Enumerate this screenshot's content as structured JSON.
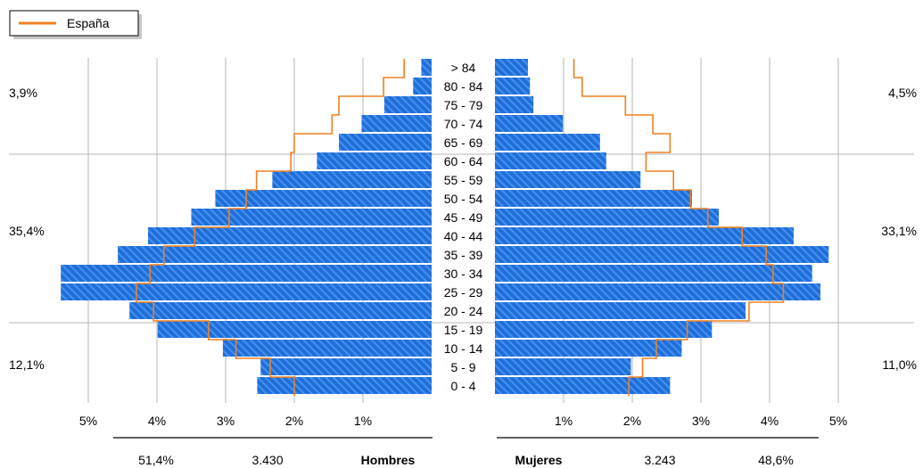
{
  "chart_data": {
    "type": "bar",
    "subtype": "population-pyramid",
    "legend": {
      "entries": [
        {
          "label": "España",
          "color": "#F08020"
        }
      ],
      "placement": "top-left"
    },
    "age_groups": [
      "> 84",
      "80 - 84",
      "75 - 79",
      "70 - 74",
      "65 - 69",
      "60 - 64",
      "55 - 59",
      "50 - 54",
      "45 - 49",
      "40 - 44",
      "35 - 39",
      "30 - 34",
      "25 - 29",
      "20 - 24",
      "15 - 19",
      "10 - 14",
      "5 - 9",
      "0 - 4"
    ],
    "x_ticks_left": [
      "5%",
      "4%",
      "3%",
      "2%",
      "1%"
    ],
    "x_ticks_right": [
      "1%",
      "2%",
      "3%",
      "4%",
      "5%"
    ],
    "xlim": [
      0,
      5
    ],
    "series": [
      {
        "name": "Hombres",
        "color": "#1E6FD9",
        "values": [
          0.15,
          0.27,
          0.69,
          1.02,
          1.35,
          1.67,
          2.32,
          3.15,
          3.5,
          4.13,
          4.57,
          5.4,
          5.4,
          4.4,
          3.99,
          3.04,
          2.49,
          2.54
        ]
      },
      {
        "name": "Mujeres",
        "color": "#1E6FD9",
        "values": [
          0.48,
          0.51,
          0.56,
          0.99,
          1.53,
          1.62,
          2.12,
          2.87,
          3.26,
          4.35,
          4.86,
          4.62,
          4.74,
          3.65,
          3.16,
          2.72,
          1.98,
          2.55
        ]
      },
      {
        "name": "España",
        "side": "Hombres",
        "color": "#F08020",
        "values": [
          0.4,
          0.7,
          1.35,
          1.45,
          2.0,
          2.05,
          2.55,
          2.7,
          2.95,
          3.45,
          3.9,
          4.1,
          4.3,
          4.05,
          3.25,
          2.85,
          2.35,
          2.0
        ]
      },
      {
        "name": "España",
        "side": "Mujeres",
        "color": "#F08020",
        "values": [
          1.15,
          1.27,
          1.9,
          2.3,
          2.55,
          2.2,
          2.6,
          2.85,
          3.1,
          3.6,
          3.95,
          4.05,
          4.2,
          3.7,
          2.8,
          2.35,
          2.15,
          1.95
        ]
      }
    ],
    "side_percentages": {
      "left": [
        "3,9%",
        "35,4%",
        "12,1%"
      ],
      "right": [
        "4,5%",
        "33,1%",
        "11,0%"
      ]
    },
    "totals": {
      "hombres": {
        "label": "Hombres",
        "count": "3.430",
        "pct": "51,4%"
      },
      "mujeres": {
        "label": "Mujeres",
        "count": "3.243",
        "pct": "48,6%"
      }
    }
  }
}
